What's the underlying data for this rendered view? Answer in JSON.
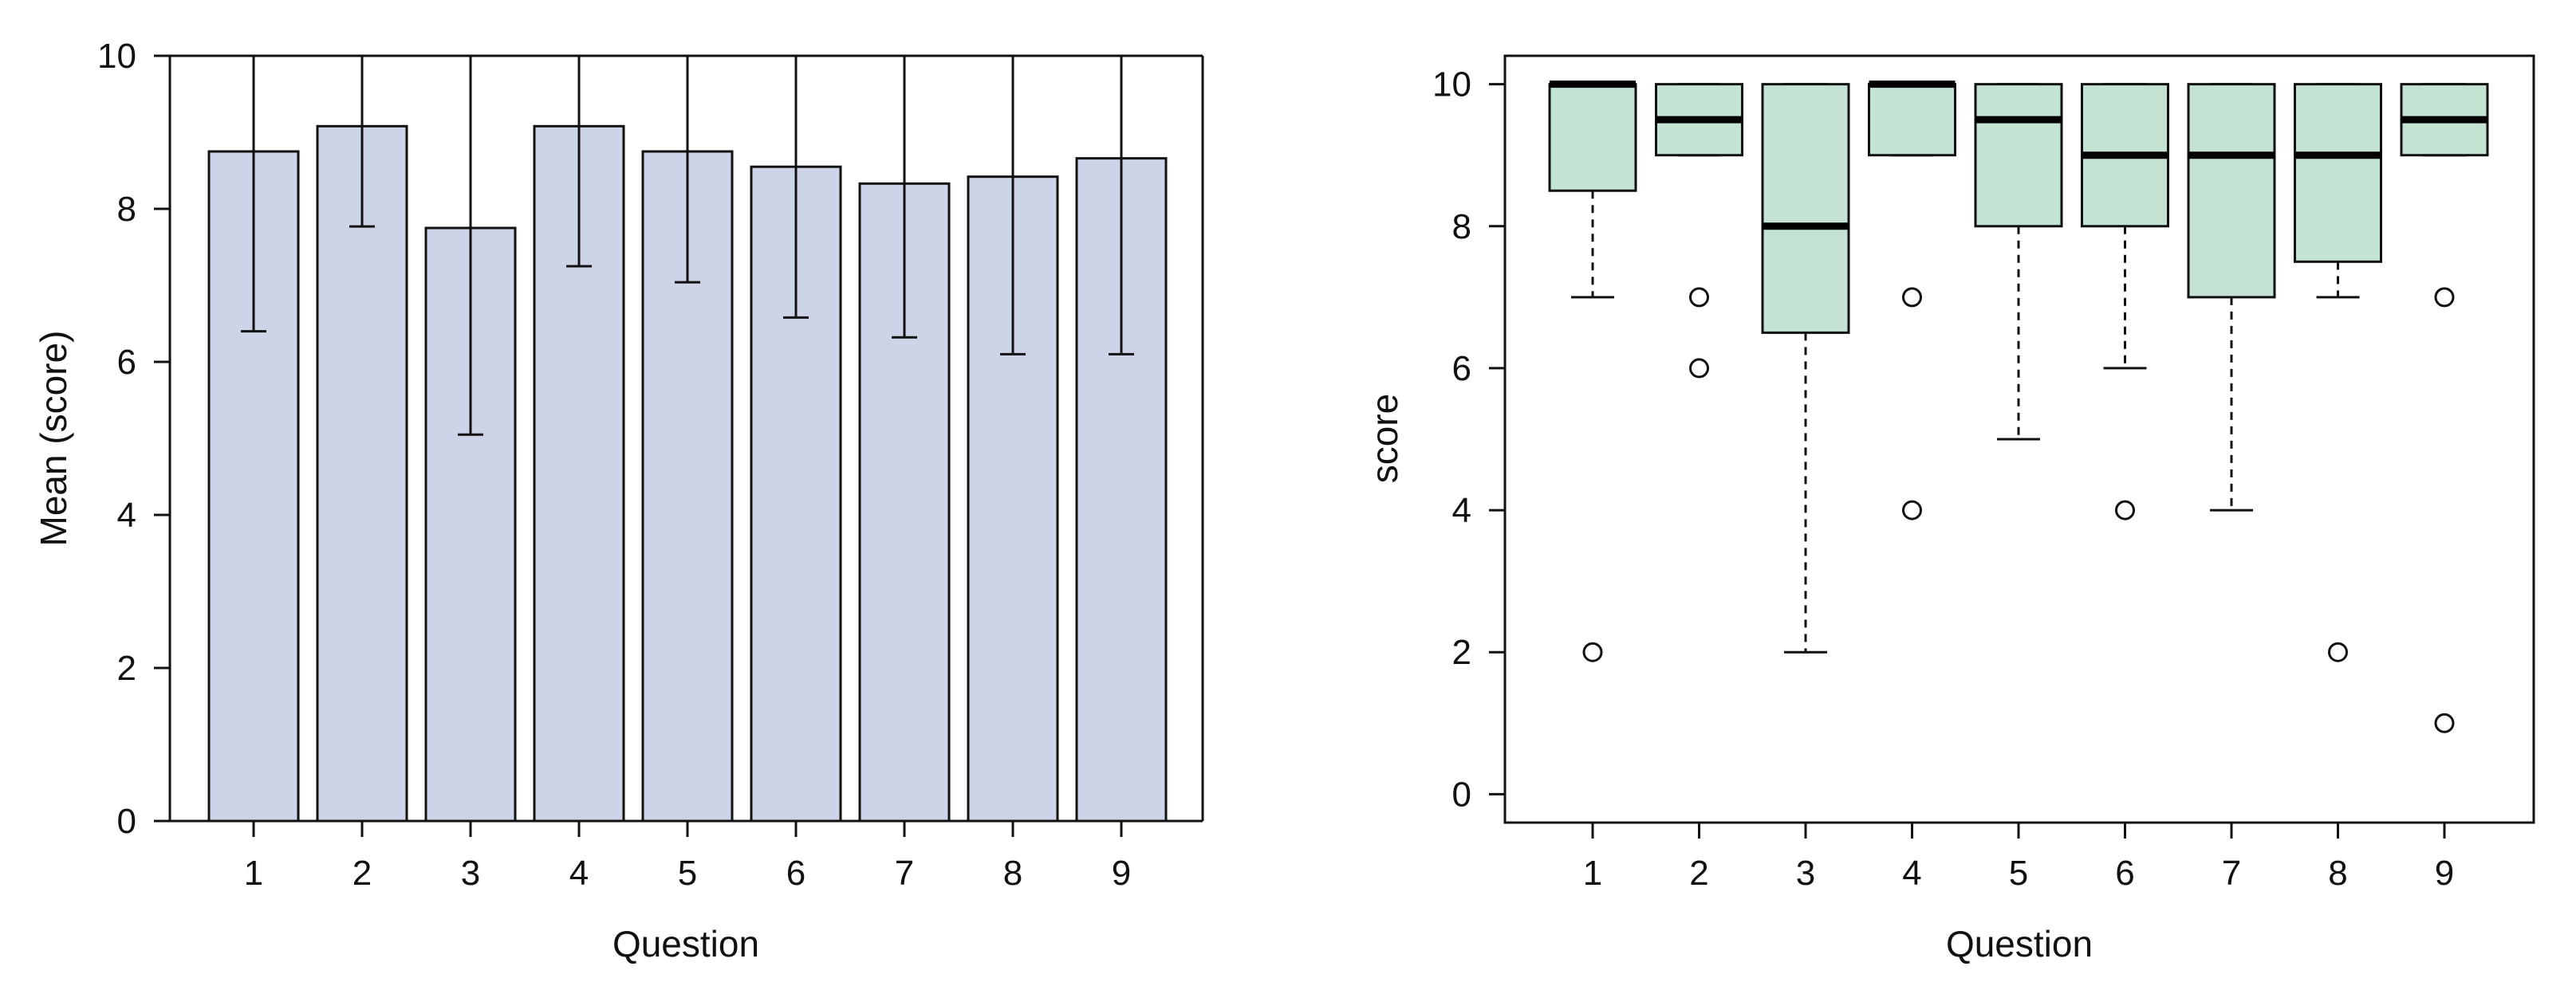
{
  "chart_data": [
    {
      "type": "bar",
      "title": "",
      "xlabel": "Question",
      "ylabel": "Mean (score)",
      "categories": [
        "1",
        "2",
        "3",
        "4",
        "5",
        "6",
        "7",
        "8",
        "9"
      ],
      "values": [
        8.75,
        9.08,
        7.75,
        9.08,
        8.75,
        8.55,
        8.33,
        8.42,
        8.66
      ],
      "error_low": [
        6.4,
        7.77,
        5.05,
        7.25,
        7.04,
        6.58,
        6.32,
        6.1,
        6.1
      ],
      "error_high": [
        10,
        10,
        10,
        10,
        10,
        10,
        10,
        10,
        10
      ],
      "ylim": [
        0,
        10
      ],
      "yticks": [
        0,
        2,
        4,
        6,
        8,
        10
      ],
      "grid": false,
      "colors": {
        "bar_fill": "#ced4e8",
        "stroke": "#111111"
      }
    },
    {
      "type": "box",
      "title": "",
      "xlabel": "Question",
      "ylabel": "score",
      "categories": [
        "1",
        "2",
        "3",
        "4",
        "5",
        "6",
        "7",
        "8",
        "9"
      ],
      "boxes": [
        {
          "whisker_low": 7,
          "q1": 8.5,
          "median": 10,
          "q3": 10,
          "whisker_high": 10,
          "outliers": [
            2
          ]
        },
        {
          "whisker_low": 9,
          "q1": 9,
          "median": 9.5,
          "q3": 10,
          "whisker_high": 10,
          "outliers": [
            7,
            6
          ]
        },
        {
          "whisker_low": 2,
          "q1": 6.5,
          "median": 8,
          "q3": 10,
          "whisker_high": 10,
          "outliers": []
        },
        {
          "whisker_low": 9,
          "q1": 9,
          "median": 10,
          "q3": 10,
          "whisker_high": 10,
          "outliers": [
            7,
            4
          ]
        },
        {
          "whisker_low": 5,
          "q1": 8,
          "median": 9.5,
          "q3": 10,
          "whisker_high": 10,
          "outliers": []
        },
        {
          "whisker_low": 6,
          "q1": 8,
          "median": 9,
          "q3": 10,
          "whisker_high": 10,
          "outliers": [
            4
          ]
        },
        {
          "whisker_low": 4,
          "q1": 7,
          "median": 9,
          "q3": 10,
          "whisker_high": 10,
          "outliers": []
        },
        {
          "whisker_low": 7,
          "q1": 7.5,
          "median": 9,
          "q3": 10,
          "whisker_high": 10,
          "outliers": [
            2
          ]
        },
        {
          "whisker_low": 9,
          "q1": 9,
          "median": 9.5,
          "q3": 10,
          "whisker_high": 10,
          "outliers": [
            7,
            1
          ]
        }
      ],
      "ylim": [
        -0.4,
        10.4
      ],
      "yticks": [
        0,
        2,
        4,
        6,
        8,
        10
      ],
      "grid": false,
      "colors": {
        "box_fill": "#c4e3d2",
        "stroke": "#111111",
        "median": "#000000"
      }
    }
  ]
}
